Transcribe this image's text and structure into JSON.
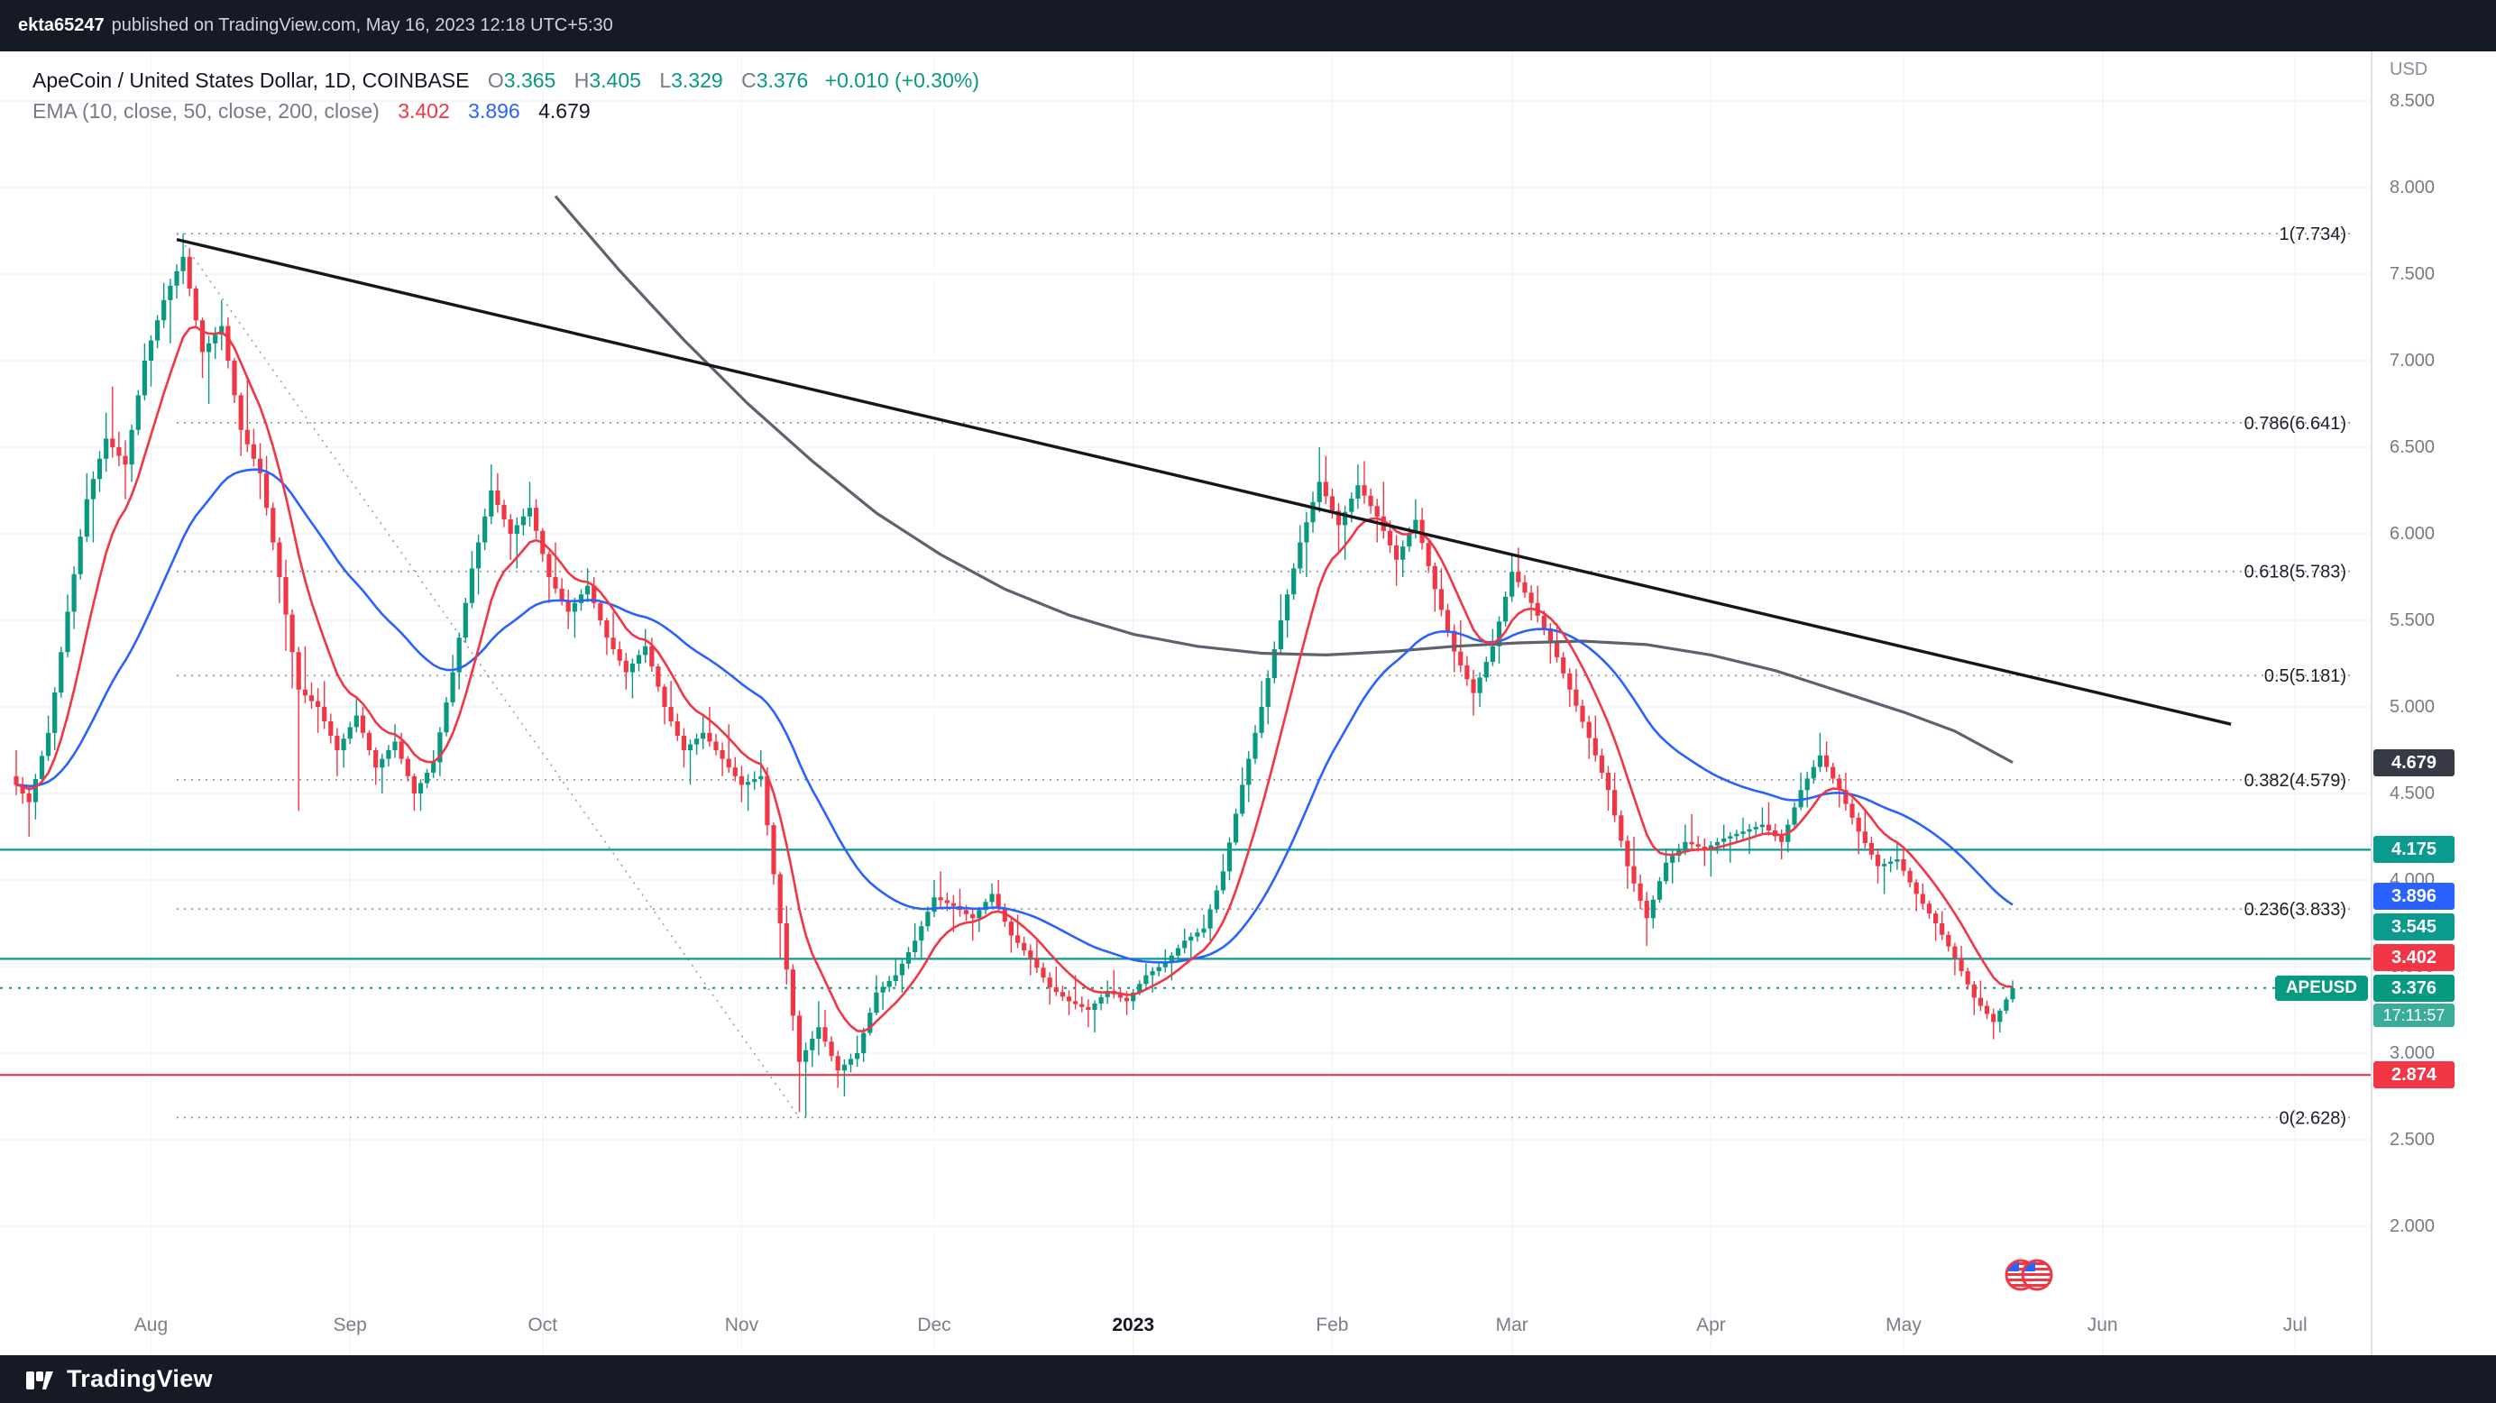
{
  "publish_bar": {
    "user": "ekta65247",
    "text": "published on TradingView.com, May 16, 2023 12:18 UTC+5:30"
  },
  "header": {
    "symbol_title": "ApeCoin / United States Dollar, 1D, COINBASE",
    "o_label": "O",
    "o_value": "3.365",
    "h_label": "H",
    "h_value": "3.405",
    "l_label": "L",
    "l_value": "3.329",
    "c_label": "C",
    "c_value": "3.376",
    "change": "+0.010 (+0.30%)",
    "indicator_label": "EMA (10, close, 50, close, 200, close)",
    "ema10_value": "3.402",
    "ema50_value": "3.896",
    "ema200_value": "4.679"
  },
  "axis": {
    "currency": "USD",
    "y_ticks": [
      {
        "label": "8.500",
        "price": 8.5
      },
      {
        "label": "8.000",
        "price": 8.0
      },
      {
        "label": "7.500",
        "price": 7.5
      },
      {
        "label": "7.000",
        "price": 7.0
      },
      {
        "label": "6.500",
        "price": 6.5
      },
      {
        "label": "6.000",
        "price": 6.0
      },
      {
        "label": "5.500",
        "price": 5.5
      },
      {
        "label": "5.000",
        "price": 5.0
      },
      {
        "label": "4.500",
        "price": 4.5
      },
      {
        "label": "4.000",
        "price": 4.0
      },
      {
        "label": "3.500",
        "price": 3.5
      },
      {
        "label": "3.000",
        "price": 3.0
      },
      {
        "label": "2.500",
        "price": 2.5
      },
      {
        "label": "2.000",
        "price": 2.0
      }
    ],
    "months": [
      {
        "label": "Aug",
        "day": 21
      },
      {
        "label": "Sep",
        "day": 52
      },
      {
        "label": "Oct",
        "day": 82
      },
      {
        "label": "Nov",
        "day": 113
      },
      {
        "label": "Dec",
        "day": 143
      },
      {
        "label": "2023",
        "day": 174,
        "bold": true
      },
      {
        "label": "Feb",
        "day": 205
      },
      {
        "label": "Mar",
        "day": 233
      },
      {
        "label": "Apr",
        "day": 264
      },
      {
        "label": "May",
        "day": 294
      },
      {
        "label": "Jun",
        "day": 325
      },
      {
        "label": "Jul",
        "day": 355
      }
    ]
  },
  "price_tags": [
    {
      "text": "4.679",
      "price": 4.679,
      "bg": "#363a45",
      "kind": "ema200"
    },
    {
      "text": "4.175",
      "price": 4.175,
      "bg": "#0b9a8e",
      "kind": "hline"
    },
    {
      "text": "3.896",
      "price": 3.896,
      "bg": "#2962ff",
      "kind": "ema50"
    },
    {
      "text": "3.545",
      "price": 3.545,
      "bg": "#0b9a8e",
      "kind": "hline"
    },
    {
      "text": "3.402",
      "price": 3.402,
      "bg": "#f23645",
      "kind": "ema10"
    },
    {
      "text": "3.376",
      "price": 3.376,
      "bg": "#089981",
      "kind": "last"
    },
    {
      "text": "2.874",
      "price": 2.874,
      "bg": "#f23645",
      "kind": "hline"
    }
  ],
  "symbol_tag": "APEUSD",
  "countdown": "17:11:57",
  "footer": {
    "brand": "TradingView"
  },
  "colors": {
    "up": "#089981",
    "down": "#f23645",
    "ema10": "#f23645",
    "ema50": "#2962ff",
    "ema200": "#5d626d",
    "trendline": "#15171c",
    "fib": "#9598a1",
    "fib_label": "#1b1f27",
    "teal_line": "#0b9a8e",
    "red_line": "#f23645",
    "last_line": "#089981",
    "grid": "#f2f4f8",
    "axis_border": "#e0e3eb"
  },
  "chart_data": {
    "type": "candlestick",
    "symbol": "APEUSD",
    "interval": "1D",
    "title": "ApeCoin / United States Dollar, 1D, COINBASE",
    "ylim": [
      2.0,
      8.5
    ],
    "bar_days": 3,
    "x_range": "Jul 2022 - May 2023",
    "candles": [
      [
        4.6,
        4.75,
        4.25,
        4.45
      ],
      [
        4.45,
        4.95,
        4.35,
        4.85
      ],
      [
        4.85,
        5.65,
        4.75,
        5.55
      ],
      [
        5.55,
        6.35,
        5.45,
        6.2
      ],
      [
        6.2,
        6.7,
        5.95,
        6.55
      ],
      [
        6.55,
        6.85,
        6.2,
        6.4
      ],
      [
        6.4,
        7.1,
        6.3,
        7.0
      ],
      [
        7.0,
        7.45,
        6.85,
        7.35
      ],
      [
        7.35,
        7.734,
        7.1,
        7.6
      ],
      [
        7.6,
        7.65,
        6.9,
        7.05
      ],
      [
        7.05,
        7.35,
        6.75,
        7.2
      ],
      [
        7.2,
        7.25,
        6.45,
        6.6
      ],
      [
        6.6,
        6.9,
        6.2,
        6.35
      ],
      [
        6.35,
        6.45,
        5.6,
        5.75
      ],
      [
        5.75,
        5.85,
        4.4,
        5.1
      ],
      [
        5.1,
        5.35,
        4.85,
        5.0
      ],
      [
        5.0,
        5.15,
        4.6,
        4.75
      ],
      [
        4.75,
        5.05,
        4.65,
        4.95
      ],
      [
        4.95,
        5.0,
        4.55,
        4.65
      ],
      [
        4.65,
        4.9,
        4.5,
        4.8
      ],
      [
        4.8,
        4.85,
        4.4,
        4.5
      ],
      [
        4.5,
        4.75,
        4.4,
        4.68
      ],
      [
        4.68,
        5.3,
        4.6,
        5.2
      ],
      [
        5.2,
        5.9,
        5.1,
        5.8
      ],
      [
        5.8,
        6.4,
        5.65,
        6.25
      ],
      [
        6.25,
        6.35,
        5.85,
        6.0
      ],
      [
        6.0,
        6.3,
        5.8,
        6.15
      ],
      [
        6.15,
        6.2,
        5.6,
        5.75
      ],
      [
        5.75,
        5.95,
        5.45,
        5.55
      ],
      [
        5.55,
        5.8,
        5.4,
        5.7
      ],
      [
        5.7,
        5.75,
        5.3,
        5.4
      ],
      [
        5.4,
        5.55,
        5.1,
        5.2
      ],
      [
        5.2,
        5.45,
        5.05,
        5.35
      ],
      [
        5.35,
        5.4,
        4.9,
        5.0
      ],
      [
        5.0,
        5.15,
        4.65,
        4.75
      ],
      [
        4.75,
        4.95,
        4.55,
        4.85
      ],
      [
        4.85,
        5.0,
        4.6,
        4.7
      ],
      [
        4.7,
        4.9,
        4.45,
        4.55
      ],
      [
        4.55,
        4.75,
        4.4,
        4.6
      ],
      [
        4.6,
        4.65,
        3.55,
        3.75
      ],
      [
        3.75,
        3.85,
        2.66,
        2.95
      ],
      [
        2.95,
        3.3,
        2.628,
        3.15
      ],
      [
        3.15,
        3.25,
        2.8,
        2.9
      ],
      [
        2.9,
        3.1,
        2.75,
        3.0
      ],
      [
        3.0,
        3.45,
        2.95,
        3.35
      ],
      [
        3.35,
        3.55,
        3.25,
        3.45
      ],
      [
        3.45,
        3.75,
        3.35,
        3.65
      ],
      [
        3.65,
        4.0,
        3.55,
        3.9
      ],
      [
        3.9,
        4.05,
        3.7,
        3.85
      ],
      [
        3.85,
        3.95,
        3.65,
        3.78
      ],
      [
        3.78,
        3.98,
        3.7,
        3.92
      ],
      [
        3.92,
        4.0,
        3.58,
        3.68
      ],
      [
        3.68,
        3.8,
        3.45,
        3.55
      ],
      [
        3.55,
        3.65,
        3.28,
        3.38
      ],
      [
        3.38,
        3.5,
        3.22,
        3.3
      ],
      [
        3.3,
        3.45,
        3.15,
        3.25
      ],
      [
        3.25,
        3.42,
        3.12,
        3.36
      ],
      [
        3.36,
        3.48,
        3.22,
        3.3
      ],
      [
        3.3,
        3.52,
        3.25,
        3.45
      ],
      [
        3.45,
        3.6,
        3.35,
        3.52
      ],
      [
        3.52,
        3.72,
        3.42,
        3.65
      ],
      [
        3.65,
        3.8,
        3.55,
        3.72
      ],
      [
        3.72,
        4.15,
        3.65,
        4.05
      ],
      [
        4.05,
        4.65,
        4.0,
        4.55
      ],
      [
        4.55,
        5.15,
        4.45,
        5.0
      ],
      [
        5.0,
        5.65,
        4.9,
        5.5
      ],
      [
        5.5,
        6.05,
        5.4,
        5.95
      ],
      [
        5.95,
        6.5,
        5.75,
        6.3
      ],
      [
        6.3,
        6.45,
        5.9,
        6.05
      ],
      [
        6.05,
        6.4,
        5.85,
        6.28
      ],
      [
        6.28,
        6.42,
        5.95,
        6.1
      ],
      [
        6.1,
        6.3,
        5.7,
        5.85
      ],
      [
        5.85,
        6.2,
        5.75,
        6.08
      ],
      [
        6.08,
        6.15,
        5.55,
        5.68
      ],
      [
        5.68,
        5.8,
        5.2,
        5.32
      ],
      [
        5.32,
        5.5,
        4.95,
        5.08
      ],
      [
        5.08,
        5.45,
        5.0,
        5.35
      ],
      [
        5.35,
        5.88,
        5.25,
        5.78
      ],
      [
        5.78,
        5.92,
        5.5,
        5.6
      ],
      [
        5.6,
        5.7,
        5.25,
        5.38
      ],
      [
        5.38,
        5.48,
        5.0,
        5.1
      ],
      [
        5.1,
        5.22,
        4.7,
        4.82
      ],
      [
        4.82,
        4.95,
        4.4,
        4.52
      ],
      [
        4.52,
        4.62,
        3.95,
        4.08
      ],
      [
        4.08,
        4.25,
        3.62,
        3.78
      ],
      [
        3.78,
        4.18,
        3.72,
        4.1
      ],
      [
        4.1,
        4.32,
        3.98,
        4.22
      ],
      [
        4.22,
        4.38,
        4.08,
        4.18
      ],
      [
        4.18,
        4.32,
        4.02,
        4.24
      ],
      [
        4.24,
        4.36,
        4.1,
        4.28
      ],
      [
        4.28,
        4.42,
        4.15,
        4.32
      ],
      [
        4.32,
        4.45,
        4.12,
        4.22
      ],
      [
        4.22,
        4.62,
        4.16,
        4.52
      ],
      [
        4.52,
        4.85,
        4.42,
        4.72
      ],
      [
        4.72,
        4.8,
        4.42,
        4.52
      ],
      [
        4.52,
        4.62,
        4.15,
        4.28
      ],
      [
        4.28,
        4.4,
        3.98,
        4.08
      ],
      [
        4.08,
        4.22,
        3.92,
        4.12
      ],
      [
        4.12,
        4.18,
        3.82,
        3.92
      ],
      [
        3.92,
        3.98,
        3.65,
        3.75
      ],
      [
        3.75,
        3.82,
        3.45,
        3.55
      ],
      [
        3.55,
        3.62,
        3.22,
        3.32
      ],
      [
        3.32,
        3.42,
        3.08,
        3.18
      ],
      [
        3.18,
        3.42,
        3.12,
        3.376
      ]
    ],
    "last_price": 3.376,
    "fib_levels": [
      {
        "label": "1(7.734)",
        "price": 7.734
      },
      {
        "label": "0.786(6.641)",
        "price": 6.641
      },
      {
        "label": "0.618(5.783)",
        "price": 5.783
      },
      {
        "label": "0.5(5.181)",
        "price": 5.181
      },
      {
        "label": "0.382(4.579)",
        "price": 4.579
      },
      {
        "label": "0.236(3.833)",
        "price": 3.833
      },
      {
        "label": "0(2.628)",
        "price": 2.628
      }
    ],
    "h_lines": [
      {
        "price": 4.175,
        "color": "#0b9a8e"
      },
      {
        "price": 3.545,
        "color": "#0b9a8e"
      },
      {
        "price": 2.874,
        "color": "#f23645"
      }
    ],
    "trendline": {
      "from_day": 25,
      "from_price": 7.7,
      "to_day": 345,
      "to_price": 4.9
    },
    "fib_baseline": {
      "from_day": 25,
      "from_price": 7.734,
      "to_day": 122,
      "to_price": 2.628
    },
    "ema200_anchors": [
      [
        84,
        7.95
      ],
      [
        94,
        7.52
      ],
      [
        104,
        7.12
      ],
      [
        114,
        6.75
      ],
      [
        124,
        6.42
      ],
      [
        134,
        6.12
      ],
      [
        144,
        5.88
      ],
      [
        154,
        5.68
      ],
      [
        164,
        5.53
      ],
      [
        174,
        5.42
      ],
      [
        184,
        5.35
      ],
      [
        194,
        5.31
      ],
      [
        204,
        5.3
      ],
      [
        214,
        5.32
      ],
      [
        224,
        5.35
      ],
      [
        234,
        5.37
      ],
      [
        244,
        5.38
      ],
      [
        254,
        5.36
      ],
      [
        264,
        5.3
      ],
      [
        274,
        5.21
      ],
      [
        284,
        5.09
      ],
      [
        294,
        4.97
      ],
      [
        302,
        4.86
      ],
      [
        311,
        4.679
      ]
    ]
  }
}
